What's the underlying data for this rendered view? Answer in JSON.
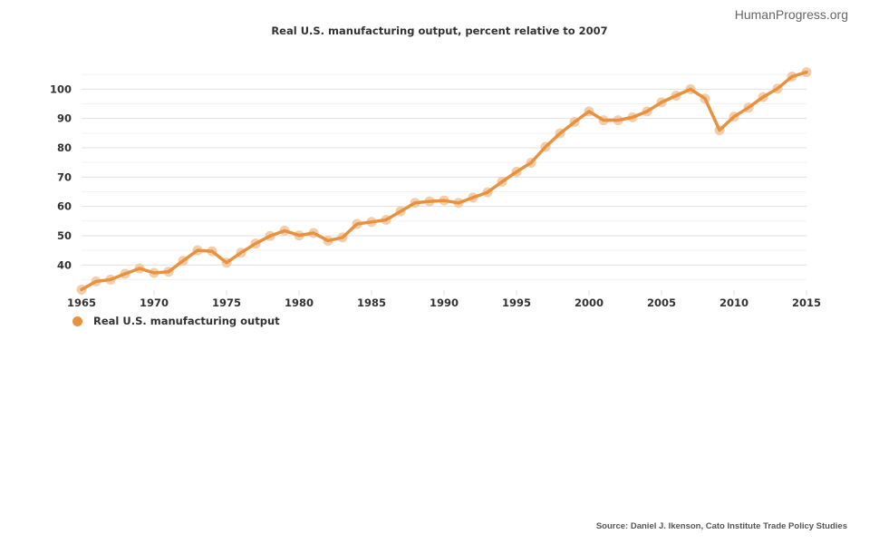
{
  "brand": "HumanProgress.org",
  "source": "Source: Daniel J. Ikenson, Cato Institute Trade Policy Studies",
  "colors": {
    "line": "#e8923f",
    "marker": "#f2c49b",
    "grid_major": "#e0e0e0",
    "grid_minor": "#f3f3f3"
  },
  "chart_data": {
    "type": "line",
    "title": "Real U.S. manufacturing output, percent relative to 2007",
    "xlabel": "",
    "ylabel": "",
    "xlim": [
      1965,
      2015
    ],
    "ylim": [
      30.8,
      106.3
    ],
    "x_ticks": [
      "1965",
      "1970",
      "1975",
      "1980",
      "1985",
      "1990",
      "1995",
      "2000",
      "2005",
      "2010",
      "2015"
    ],
    "y_ticks": [
      "40",
      "50",
      "60",
      "70",
      "80",
      "90",
      "100"
    ],
    "grid": true,
    "legend_position": "bottom-left",
    "series": [
      {
        "name": "Real U.S. manufacturing output",
        "x": [
          1965,
          1966,
          1967,
          1968,
          1969,
          1970,
          1971,
          1972,
          1973,
          1974,
          1975,
          1976,
          1977,
          1978,
          1979,
          1980,
          1981,
          1982,
          1983,
          1984,
          1985,
          1986,
          1987,
          1988,
          1989,
          1990,
          1991,
          1992,
          1993,
          1994,
          1995,
          1996,
          1997,
          1998,
          1999,
          2000,
          2001,
          2002,
          2003,
          2004,
          2005,
          2006,
          2007,
          2008,
          2009,
          2010,
          2011,
          2012,
          2013,
          2014,
          2015
        ],
        "values": [
          31.6,
          34.4,
          35.0,
          37.0,
          38.8,
          37.3,
          37.7,
          41.4,
          45.0,
          44.7,
          40.8,
          44.2,
          47.3,
          49.9,
          51.7,
          50.1,
          50.9,
          48.3,
          49.4,
          54.0,
          54.7,
          55.4,
          58.3,
          61.2,
          61.7,
          62.0,
          61.2,
          63.0,
          64.8,
          68.4,
          71.8,
          74.9,
          80.3,
          84.9,
          88.8,
          92.4,
          89.4,
          89.4,
          90.4,
          92.4,
          95.5,
          97.8,
          100.0,
          96.8,
          86.0,
          90.6,
          93.7,
          97.3,
          100.2,
          104.3,
          105.8
        ]
      }
    ]
  }
}
